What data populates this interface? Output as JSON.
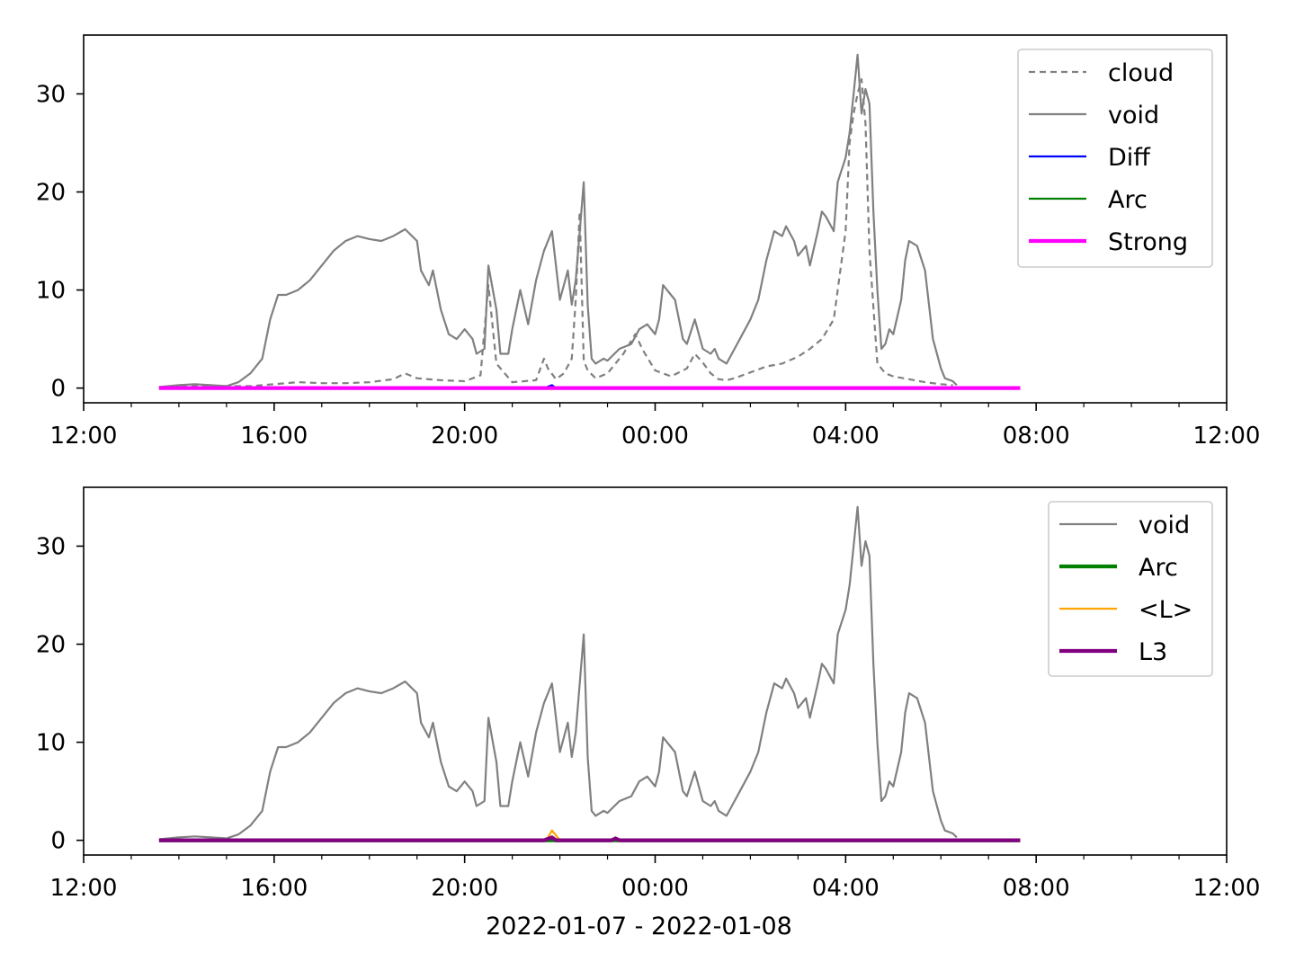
{
  "chart_data": [
    {
      "type": "line",
      "x_unit": "time of day (2022-01-07 to 2022-01-08)",
      "xlim": [
        "2022-01-07 12:00",
        "2022-01-08 12:00"
      ],
      "ylim": [
        -1.5,
        36
      ],
      "x_tick_labels": [
        "12:00",
        "16:00",
        "20:00",
        "00:00",
        "04:00",
        "08:00",
        "12:00"
      ],
      "y_tick_labels": [
        "0",
        "10",
        "20",
        "30"
      ],
      "y_ticks": [
        0,
        10,
        20,
        30
      ],
      "xlabel": "",
      "legend": {
        "placement": "upper right",
        "entries": [
          "cloud",
          "void",
          "Diff",
          "Arc",
          "Strong"
        ]
      },
      "series": [
        {
          "name": "cloud",
          "color": "#808080",
          "style": "dashed",
          "x": [
            "13:35",
            "14:30",
            "15:30",
            "16:00",
            "16:30",
            "17:00",
            "17:30",
            "18:00",
            "18:30",
            "18:45",
            "19:00",
            "19:30",
            "20:00",
            "20:20",
            "20:30",
            "20:40",
            "21:00",
            "21:30",
            "21:40",
            "21:45",
            "21:55",
            "22:05",
            "22:15",
            "22:20",
            "22:25",
            "22:30",
            "22:35",
            "22:45",
            "23:00",
            "23:20",
            "23:35",
            "23:45",
            "00:00",
            "00:20",
            "00:40",
            "00:50",
            "01:00",
            "01:10",
            "01:20",
            "01:30",
            "01:40",
            "02:00",
            "02:20",
            "02:40",
            "03:00",
            "03:15",
            "03:30",
            "03:45",
            "04:00",
            "04:05",
            "04:10",
            "04:15",
            "04:20",
            "04:25",
            "04:30",
            "04:40",
            "04:50",
            "05:00",
            "05:20",
            "05:40",
            "06:00",
            "06:15"
          ],
          "y": [
            0.1,
            0.2,
            0.2,
            0.4,
            0.6,
            0.5,
            0.5,
            0.6,
            0.9,
            1.5,
            1.0,
            0.8,
            0.7,
            1.3,
            10.5,
            2.5,
            0.6,
            0.8,
            3.0,
            2.0,
            0.9,
            1.5,
            3.0,
            9.0,
            18.0,
            2.8,
            1.8,
            1.0,
            1.5,
            3.5,
            5.5,
            3.8,
            1.8,
            1.2,
            2.0,
            3.5,
            2.6,
            1.5,
            0.9,
            0.8,
            1.0,
            1.6,
            2.2,
            2.5,
            3.2,
            4.0,
            5.0,
            7.0,
            16.0,
            25.0,
            28.0,
            30.0,
            31.5,
            27.0,
            14.0,
            2.5,
            1.5,
            1.2,
            0.9,
            0.6,
            0.4,
            0.3
          ]
        },
        {
          "name": "void",
          "color": "#808080",
          "style": "solid",
          "x": [
            "13:35",
            "14:00",
            "14:20",
            "14:40",
            "15:00",
            "15:15",
            "15:30",
            "15:45",
            "15:55",
            "16:05",
            "16:15",
            "16:30",
            "16:45",
            "17:00",
            "17:15",
            "17:30",
            "17:45",
            "18:00",
            "18:15",
            "18:30",
            "18:45",
            "19:00",
            "19:05",
            "19:15",
            "19:20",
            "19:30",
            "19:40",
            "19:50",
            "20:00",
            "20:10",
            "20:15",
            "20:25",
            "20:30",
            "20:40",
            "20:45",
            "20:55",
            "21:00",
            "21:10",
            "21:20",
            "21:30",
            "21:40",
            "21:50",
            "22:00",
            "22:10",
            "22:15",
            "22:20",
            "22:30",
            "22:35",
            "22:40",
            "22:45",
            "22:55",
            "23:00",
            "23:15",
            "23:30",
            "23:40",
            "23:50",
            "00:00",
            "00:05",
            "00:10",
            "00:15",
            "00:25",
            "00:30",
            "00:35",
            "00:40",
            "00:50",
            "01:00",
            "01:10",
            "01:15",
            "01:20",
            "01:30",
            "01:40",
            "01:50",
            "02:00",
            "02:10",
            "02:20",
            "02:30",
            "02:40",
            "02:45",
            "02:55",
            "03:00",
            "03:10",
            "03:15",
            "03:25",
            "03:30",
            "03:35",
            "03:45",
            "03:50",
            "04:00",
            "04:05",
            "04:10",
            "04:15",
            "04:20",
            "04:25",
            "04:30",
            "04:35",
            "04:40",
            "04:45",
            "04:50",
            "04:55",
            "05:00",
            "05:10",
            "05:15",
            "05:20",
            "05:30",
            "05:40",
            "05:50",
            "06:00",
            "06:05",
            "06:15",
            "06:20"
          ],
          "y": [
            0.1,
            0.3,
            0.4,
            0.3,
            0.2,
            0.6,
            1.5,
            3.0,
            7.0,
            9.5,
            9.5,
            10.0,
            11.0,
            12.5,
            14.0,
            15.0,
            15.5,
            15.2,
            15.0,
            15.5,
            16.2,
            15.0,
            12.0,
            10.5,
            12.0,
            8.0,
            5.5,
            5.0,
            6.0,
            5.0,
            3.5,
            4.0,
            12.5,
            8.0,
            3.5,
            3.5,
            6.0,
            10.0,
            6.5,
            11.0,
            14.0,
            16.0,
            9.0,
            12.0,
            8.5,
            11.0,
            21.0,
            8.5,
            3.0,
            2.5,
            3.0,
            2.8,
            4.0,
            4.5,
            6.0,
            6.5,
            5.5,
            7.0,
            10.5,
            10.0,
            9.0,
            7.0,
            5.0,
            4.5,
            7.0,
            4.0,
            3.5,
            4.0,
            3.0,
            2.5,
            4.0,
            5.5,
            7.0,
            9.0,
            13.0,
            16.0,
            15.5,
            16.5,
            15.0,
            13.5,
            14.5,
            12.5,
            16.0,
            18.0,
            17.5,
            16.0,
            21.0,
            23.5,
            26.0,
            30.0,
            34.0,
            28.0,
            30.5,
            29.0,
            18.0,
            10.0,
            4.0,
            4.5,
            6.0,
            5.5,
            9.0,
            13.0,
            15.0,
            14.5,
            12.0,
            5.0,
            2.0,
            1.0,
            0.7,
            0.3
          ]
        },
        {
          "name": "Diff",
          "color": "#0000ff",
          "style": "solid",
          "x": [
            "13:35",
            "21:40",
            "21:50",
            "21:55",
            "07:40"
          ],
          "y": [
            0,
            0,
            0.3,
            0,
            0
          ]
        },
        {
          "name": "Arc",
          "color": "#008000",
          "style": "solid",
          "x": [
            "13:35",
            "07:40"
          ],
          "y": [
            0,
            0
          ]
        },
        {
          "name": "Strong",
          "color": "#ff00ff",
          "style": "solid-thick",
          "x": [
            "13:35",
            "07:40"
          ],
          "y": [
            0,
            0
          ]
        }
      ]
    },
    {
      "type": "line",
      "x_unit": "time of day (2022-01-07 to 2022-01-08)",
      "xlim": [
        "2022-01-07 12:00",
        "2022-01-08 12:00"
      ],
      "ylim": [
        -1.5,
        36
      ],
      "x_tick_labels": [
        "12:00",
        "16:00",
        "20:00",
        "00:00",
        "04:00",
        "08:00",
        "12:00"
      ],
      "y_tick_labels": [
        "0",
        "10",
        "20",
        "30"
      ],
      "y_ticks": [
        0,
        10,
        20,
        30
      ],
      "xlabel": "2022-01-07 - 2022-01-08",
      "legend": {
        "placement": "upper right",
        "entries": [
          "void",
          "Arc",
          "<L>",
          "L3"
        ]
      },
      "series": [
        {
          "name": "void",
          "color": "#808080",
          "style": "solid",
          "x": [
            "13:35",
            "14:00",
            "14:20",
            "14:40",
            "15:00",
            "15:15",
            "15:30",
            "15:45",
            "15:55",
            "16:05",
            "16:15",
            "16:30",
            "16:45",
            "17:00",
            "17:15",
            "17:30",
            "17:45",
            "18:00",
            "18:15",
            "18:30",
            "18:45",
            "19:00",
            "19:05",
            "19:15",
            "19:20",
            "19:30",
            "19:40",
            "19:50",
            "20:00",
            "20:10",
            "20:15",
            "20:25",
            "20:30",
            "20:40",
            "20:45",
            "20:55",
            "21:00",
            "21:10",
            "21:20",
            "21:30",
            "21:40",
            "21:50",
            "22:00",
            "22:10",
            "22:15",
            "22:20",
            "22:30",
            "22:35",
            "22:40",
            "22:45",
            "22:55",
            "23:00",
            "23:15",
            "23:30",
            "23:40",
            "23:50",
            "00:00",
            "00:05",
            "00:10",
            "00:15",
            "00:25",
            "00:30",
            "00:35",
            "00:40",
            "00:50",
            "01:00",
            "01:10",
            "01:15",
            "01:20",
            "01:30",
            "01:40",
            "01:50",
            "02:00",
            "02:10",
            "02:20",
            "02:30",
            "02:40",
            "02:45",
            "02:55",
            "03:00",
            "03:10",
            "03:15",
            "03:25",
            "03:30",
            "03:35",
            "03:45",
            "03:50",
            "04:00",
            "04:05",
            "04:10",
            "04:15",
            "04:20",
            "04:25",
            "04:30",
            "04:35",
            "04:40",
            "04:45",
            "04:50",
            "04:55",
            "05:00",
            "05:10",
            "05:15",
            "05:20",
            "05:30",
            "05:40",
            "05:50",
            "06:00",
            "06:05",
            "06:15",
            "06:20"
          ],
          "y": [
            0.1,
            0.3,
            0.4,
            0.3,
            0.2,
            0.6,
            1.5,
            3.0,
            7.0,
            9.5,
            9.5,
            10.0,
            11.0,
            12.5,
            14.0,
            15.0,
            15.5,
            15.2,
            15.0,
            15.5,
            16.2,
            15.0,
            12.0,
            10.5,
            12.0,
            8.0,
            5.5,
            5.0,
            6.0,
            5.0,
            3.5,
            4.0,
            12.5,
            8.0,
            3.5,
            3.5,
            6.0,
            10.0,
            6.5,
            11.0,
            14.0,
            16.0,
            9.0,
            12.0,
            8.5,
            11.0,
            21.0,
            8.5,
            3.0,
            2.5,
            3.0,
            2.8,
            4.0,
            4.5,
            6.0,
            6.5,
            5.5,
            7.0,
            10.5,
            10.0,
            9.0,
            7.0,
            5.0,
            4.5,
            7.0,
            4.0,
            3.5,
            4.0,
            3.0,
            2.5,
            4.0,
            5.5,
            7.0,
            9.0,
            13.0,
            16.0,
            15.5,
            16.5,
            15.0,
            13.5,
            14.5,
            12.5,
            16.0,
            18.0,
            17.5,
            16.0,
            21.0,
            23.5,
            26.0,
            30.0,
            34.0,
            28.0,
            30.5,
            29.0,
            18.0,
            10.0,
            4.0,
            4.5,
            6.0,
            5.5,
            9.0,
            13.0,
            15.0,
            14.5,
            12.0,
            5.0,
            2.0,
            1.0,
            0.7,
            0.3
          ]
        },
        {
          "name": "Arc",
          "color": "#008000",
          "style": "solid-thick",
          "x": [
            "13:35",
            "07:40"
          ],
          "y": [
            0,
            0
          ]
        },
        {
          "name": "<L>",
          "color": "#ffa500",
          "style": "solid",
          "x": [
            "13:35",
            "21:40",
            "21:45",
            "21:50",
            "21:55",
            "22:00",
            "23:05",
            "23:10",
            "23:15",
            "07:40"
          ],
          "y": [
            0,
            0,
            0.3,
            1.0,
            0.5,
            0,
            0,
            0.3,
            0,
            0
          ]
        },
        {
          "name": "L3",
          "color": "#800080",
          "style": "solid-thick",
          "x": [
            "13:35",
            "21:40",
            "21:50",
            "21:55",
            "23:05",
            "23:10",
            "23:15",
            "07:40"
          ],
          "y": [
            0,
            0,
            0.3,
            0,
            0,
            0.2,
            0,
            0
          ]
        }
      ]
    }
  ]
}
